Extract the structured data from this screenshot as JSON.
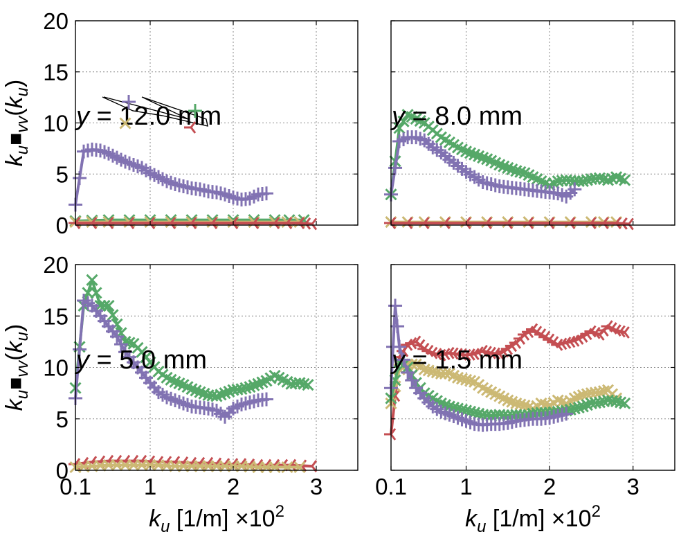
{
  "colors": {
    "purple": "#8172b2",
    "green": "#55a868",
    "red": "#c44e52",
    "tan": "#ccb974"
  },
  "legend_markers": [
    "plus",
    "x",
    "plus",
    "tri_left"
  ],
  "chart_data": [
    {
      "type": "line",
      "annotation": "y = 12.0 mm",
      "ylabel": "k_u Φ_vv(k_u)",
      "xlabel": "",
      "xlim": [
        0.1,
        3.5
      ],
      "ylim": [
        0,
        20
      ],
      "xticks": [
        0.1,
        1,
        2,
        3
      ],
      "yticks": [
        0,
        5,
        10,
        15,
        20
      ],
      "grid": true,
      "legend": "top-left",
      "series": [
        {
          "color": "purple",
          "marker": "plus",
          "x": [
            0.1,
            0.2,
            0.3,
            0.4,
            0.5,
            0.6,
            0.7,
            0.8,
            0.9,
            1.0,
            1.1,
            1.2,
            1.3,
            1.4,
            1.5,
            1.6,
            1.7,
            1.8,
            1.9,
            2.0,
            2.1,
            2.2,
            2.3,
            2.4
          ],
          "y": [
            2.0,
            7.2,
            7.4,
            7.3,
            7.0,
            6.6,
            6.2,
            5.9,
            5.6,
            5.1,
            4.7,
            4.3,
            4.0,
            3.8,
            3.6,
            3.5,
            3.3,
            3.2,
            3.0,
            2.7,
            2.5,
            2.6,
            3.0,
            3.1
          ]
        },
        {
          "color": "green",
          "marker": "x",
          "x": [
            0.1,
            0.5,
            1.0,
            1.5,
            2.0,
            2.5,
            2.85
          ],
          "y": [
            0.4,
            0.5,
            0.5,
            0.5,
            0.5,
            0.5,
            0.5
          ]
        },
        {
          "color": "tan",
          "marker": "x",
          "x": [
            0.1,
            0.5,
            1.0,
            1.5,
            2.0,
            2.5,
            2.8
          ],
          "y": [
            0.3,
            0.3,
            0.3,
            0.3,
            0.3,
            0.3,
            0.3
          ]
        },
        {
          "color": "red",
          "marker": "tri_left",
          "x": [
            0.1,
            0.5,
            1.0,
            1.5,
            2.0,
            2.5,
            2.8,
            2.95
          ],
          "y": [
            0.2,
            0.2,
            0.2,
            0.2,
            0.2,
            0.2,
            0.2,
            0.1
          ]
        }
      ]
    },
    {
      "type": "line",
      "annotation": "y = 8.0 mm",
      "xlim": [
        0.1,
        3.5
      ],
      "ylim": [
        0,
        20
      ],
      "xticks": [
        0.1,
        1,
        2,
        3
      ],
      "grid": true,
      "series": [
        {
          "color": "green",
          "marker": "x",
          "x": [
            0.1,
            0.2,
            0.3,
            0.4,
            0.5,
            0.6,
            0.7,
            0.8,
            0.9,
            1.0,
            1.1,
            1.2,
            1.3,
            1.4,
            1.5,
            1.6,
            1.7,
            1.8,
            1.9,
            2.0,
            2.1,
            2.2,
            2.3,
            2.4,
            2.5,
            2.6,
            2.7,
            2.8,
            2.9
          ],
          "y": [
            3.0,
            9.5,
            10.8,
            10.4,
            10.0,
            9.3,
            8.6,
            8.1,
            7.6,
            7.2,
            6.9,
            6.6,
            6.3,
            5.9,
            5.6,
            5.3,
            5.1,
            4.7,
            4.3,
            3.9,
            4.3,
            4.4,
            4.3,
            4.3,
            4.5,
            4.6,
            4.4,
            4.7,
            4.4
          ]
        },
        {
          "color": "purple",
          "marker": "plus",
          "x": [
            0.1,
            0.2,
            0.3,
            0.4,
            0.5,
            0.6,
            0.7,
            0.8,
            0.9,
            1.0,
            1.1,
            1.2,
            1.3,
            1.4,
            1.5,
            1.6,
            1.7,
            1.8,
            1.9,
            2.0,
            2.1,
            2.2,
            2.3
          ],
          "y": [
            3.0,
            8.2,
            8.6,
            8.6,
            8.3,
            7.6,
            7.1,
            6.4,
            5.8,
            5.2,
            4.7,
            4.2,
            4.0,
            3.8,
            3.7,
            3.6,
            3.5,
            3.4,
            3.3,
            3.2,
            3.1,
            2.8,
            3.5
          ]
        },
        {
          "color": "tan",
          "marker": "x",
          "x": [
            0.1,
            0.5,
            1.0,
            1.5,
            2.0,
            2.5,
            2.8
          ],
          "y": [
            0.3,
            0.3,
            0.3,
            0.3,
            0.3,
            0.3,
            0.3
          ]
        },
        {
          "color": "red",
          "marker": "tri_left",
          "x": [
            0.1,
            0.5,
            1.0,
            1.5,
            2.0,
            2.5,
            2.8,
            2.95
          ],
          "y": [
            0.2,
            0.2,
            0.2,
            0.2,
            0.2,
            0.2,
            0.2,
            0.1
          ]
        }
      ]
    },
    {
      "type": "line",
      "annotation": "y = 5.0 mm",
      "ylabel": "k_u Φ_vv(k_u)",
      "xlabel": "k_u [1/m] ×10^2",
      "xlim": [
        0.1,
        3.5
      ],
      "ylim": [
        0,
        20
      ],
      "xticks": [
        0.1,
        1,
        2,
        3
      ],
      "yticks": [
        0,
        5,
        10,
        15,
        20
      ],
      "grid": true,
      "series": [
        {
          "color": "green",
          "marker": "x",
          "x": [
            0.1,
            0.2,
            0.3,
            0.4,
            0.5,
            0.6,
            0.7,
            0.8,
            0.9,
            1.0,
            1.1,
            1.2,
            1.3,
            1.4,
            1.5,
            1.6,
            1.7,
            1.8,
            1.9,
            2.0,
            2.1,
            2.2,
            2.3,
            2.4,
            2.5,
            2.6,
            2.7,
            2.8,
            2.9
          ],
          "y": [
            8.0,
            16.0,
            18.5,
            16.0,
            16.0,
            14.2,
            12.5,
            12.3,
            11.5,
            10.5,
            9.6,
            9.0,
            8.6,
            8.3,
            7.9,
            7.6,
            7.3,
            7.2,
            7.5,
            7.8,
            7.9,
            8.1,
            8.4,
            8.7,
            9.2,
            8.8,
            8.4,
            8.5,
            8.3
          ]
        },
        {
          "color": "purple",
          "marker": "plus",
          "x": [
            0.1,
            0.2,
            0.3,
            0.4,
            0.5,
            0.6,
            0.7,
            0.8,
            0.9,
            1.0,
            1.1,
            1.2,
            1.3,
            1.4,
            1.5,
            1.6,
            1.7,
            1.8,
            1.9,
            2.0,
            2.1,
            2.2,
            2.3,
            2.4
          ],
          "y": [
            7.0,
            16.5,
            16.0,
            15.0,
            14.0,
            13.0,
            11.5,
            10.5,
            9.5,
            8.5,
            7.6,
            7.1,
            6.8,
            6.5,
            6.2,
            6.1,
            6.0,
            5.8,
            5.2,
            6.0,
            6.4,
            6.6,
            6.8,
            6.9
          ]
        },
        {
          "color": "red",
          "marker": "tri_left",
          "x": [
            0.1,
            0.3,
            0.5,
            0.7,
            0.9,
            1.1,
            1.3,
            1.5,
            1.7,
            1.9,
            2.1,
            2.3,
            2.5,
            2.7,
            2.95
          ],
          "y": [
            0.6,
            0.8,
            0.9,
            0.9,
            0.9,
            0.8,
            0.8,
            0.7,
            0.7,
            0.6,
            0.6,
            0.5,
            0.5,
            0.5,
            0.4
          ]
        },
        {
          "color": "tan",
          "marker": "x",
          "x": [
            0.1,
            0.3,
            0.5,
            0.7,
            0.9,
            1.1,
            1.3,
            1.5,
            1.7,
            1.9,
            2.1,
            2.3,
            2.5,
            2.8
          ],
          "y": [
            0.3,
            0.4,
            0.5,
            0.5,
            0.5,
            0.5,
            0.4,
            0.4,
            0.4,
            0.4,
            0.4,
            0.3,
            0.3,
            0.3
          ]
        }
      ]
    },
    {
      "type": "line",
      "annotation": "y = 1.5 mm",
      "xlabel": "k_u [1/m] ×10^2",
      "xlim": [
        0.1,
        3.5
      ],
      "ylim": [
        0,
        20
      ],
      "xticks": [
        0.1,
        1,
        2,
        3
      ],
      "grid": true,
      "series": [
        {
          "color": "red",
          "marker": "tri_left",
          "x": [
            0.1,
            0.2,
            0.3,
            0.4,
            0.5,
            0.6,
            0.7,
            0.8,
            0.9,
            1.0,
            1.1,
            1.2,
            1.3,
            1.4,
            1.5,
            1.6,
            1.7,
            1.8,
            1.9,
            2.0,
            2.1,
            2.2,
            2.3,
            2.4,
            2.5,
            2.6,
            2.7,
            2.8,
            2.9
          ],
          "y": [
            3.5,
            11.0,
            12.2,
            12.5,
            11.8,
            11.4,
            11.2,
            11.4,
            11.3,
            11.2,
            11.3,
            11.6,
            11.4,
            11.3,
            11.8,
            12.4,
            13.2,
            13.7,
            13.2,
            12.7,
            12.2,
            12.4,
            12.6,
            13.0,
            13.5,
            13.2,
            14.0,
            13.6,
            13.4
          ]
        },
        {
          "color": "tan",
          "marker": "x",
          "x": [
            0.1,
            0.2,
            0.3,
            0.4,
            0.5,
            0.6,
            0.7,
            0.8,
            0.9,
            1.0,
            1.1,
            1.2,
            1.3,
            1.4,
            1.5,
            1.6,
            1.7,
            1.8,
            1.9,
            2.0,
            2.1,
            2.2,
            2.3,
            2.4,
            2.5,
            2.6,
            2.7,
            2.8
          ],
          "y": [
            6.5,
            9.8,
            10.3,
            10.3,
            9.8,
            9.6,
            9.4,
            9.4,
            9.0,
            8.8,
            8.6,
            8.0,
            7.6,
            7.2,
            6.8,
            6.5,
            6.3,
            6.0,
            6.5,
            6.3,
            6.8,
            6.5,
            7.0,
            7.3,
            7.5,
            7.6,
            7.8,
            7.0
          ]
        },
        {
          "color": "green",
          "marker": "x",
          "x": [
            0.1,
            0.2,
            0.3,
            0.4,
            0.5,
            0.6,
            0.7,
            0.8,
            0.9,
            1.0,
            1.1,
            1.2,
            1.3,
            1.4,
            1.5,
            1.6,
            1.7,
            1.8,
            1.9,
            2.0,
            2.1,
            2.2,
            2.3,
            2.4,
            2.5,
            2.6,
            2.7,
            2.8,
            2.9
          ],
          "y": [
            7.0,
            10.5,
            10.0,
            8.5,
            7.5,
            7.0,
            6.5,
            6.2,
            6.0,
            5.8,
            5.6,
            5.4,
            5.3,
            5.4,
            5.3,
            5.4,
            5.3,
            5.5,
            5.6,
            5.6,
            5.7,
            5.8,
            6.0,
            6.2,
            6.5,
            6.6,
            6.8,
            6.7,
            6.5
          ]
        },
        {
          "color": "purple",
          "marker": "plus",
          "x": [
            0.1,
            0.15,
            0.2,
            0.3,
            0.4,
            0.5,
            0.6,
            0.7,
            0.8,
            0.9,
            1.0,
            1.1,
            1.2,
            1.3,
            1.4,
            1.5,
            1.6,
            1.7,
            1.8,
            1.9,
            2.0,
            2.1,
            2.2
          ],
          "y": [
            8.0,
            16.0,
            12.0,
            9.5,
            8.0,
            7.0,
            6.2,
            5.7,
            5.4,
            5.1,
            4.8,
            4.5,
            4.4,
            4.5,
            4.5,
            4.6,
            4.8,
            4.9,
            5.0,
            5.0,
            5.1,
            5.3,
            5.5
          ]
        }
      ]
    }
  ]
}
